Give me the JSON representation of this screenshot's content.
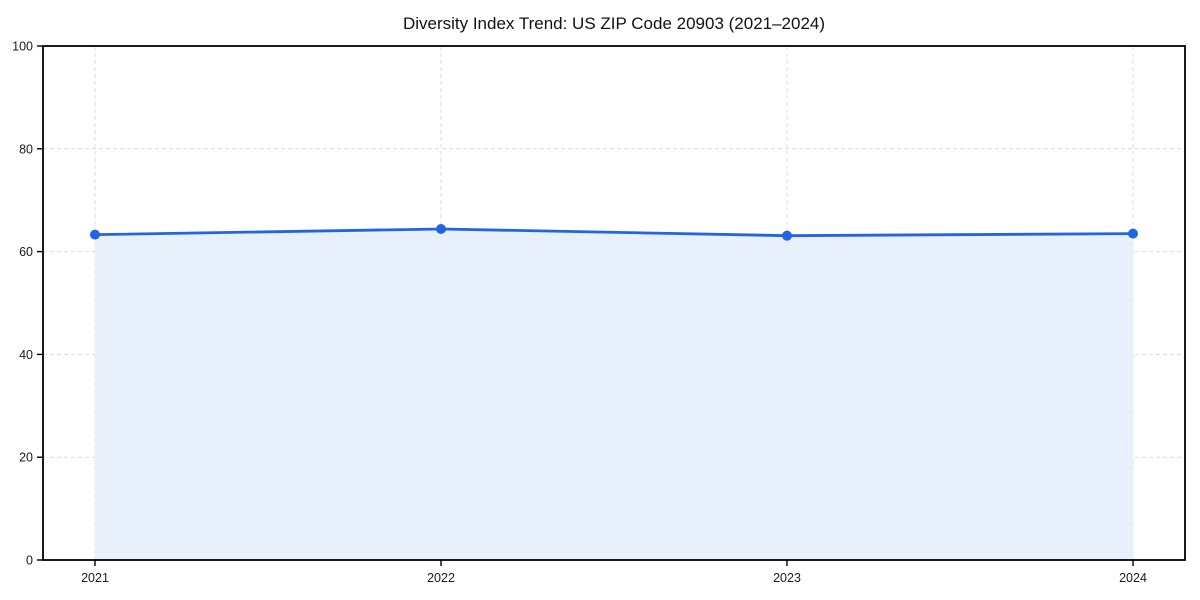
{
  "chart_data": {
    "type": "line",
    "title": "Diversity Index Trend: US ZIP Code 20903 (2021–2024)",
    "x": [
      "2021",
      "2022",
      "2023",
      "2024"
    ],
    "series": [
      {
        "name": "Diversity Index",
        "values": [
          63.3,
          64.4,
          63.1,
          63.5
        ]
      }
    ],
    "xlabel": "",
    "ylabel": "",
    "ylim": [
      0,
      100
    ],
    "yticks": [
      0,
      20,
      40,
      60,
      80,
      100
    ],
    "grid": "dashed, both axes",
    "legend_position": "none",
    "area_fill": true,
    "colors": {
      "line": "#2166e0",
      "marker": "#2166e0",
      "fill": "#e8f0fc",
      "grid": "#dcdcdc",
      "spine": "#000000",
      "tick_label": "#1a1a1a",
      "background": "#ffffff"
    }
  }
}
